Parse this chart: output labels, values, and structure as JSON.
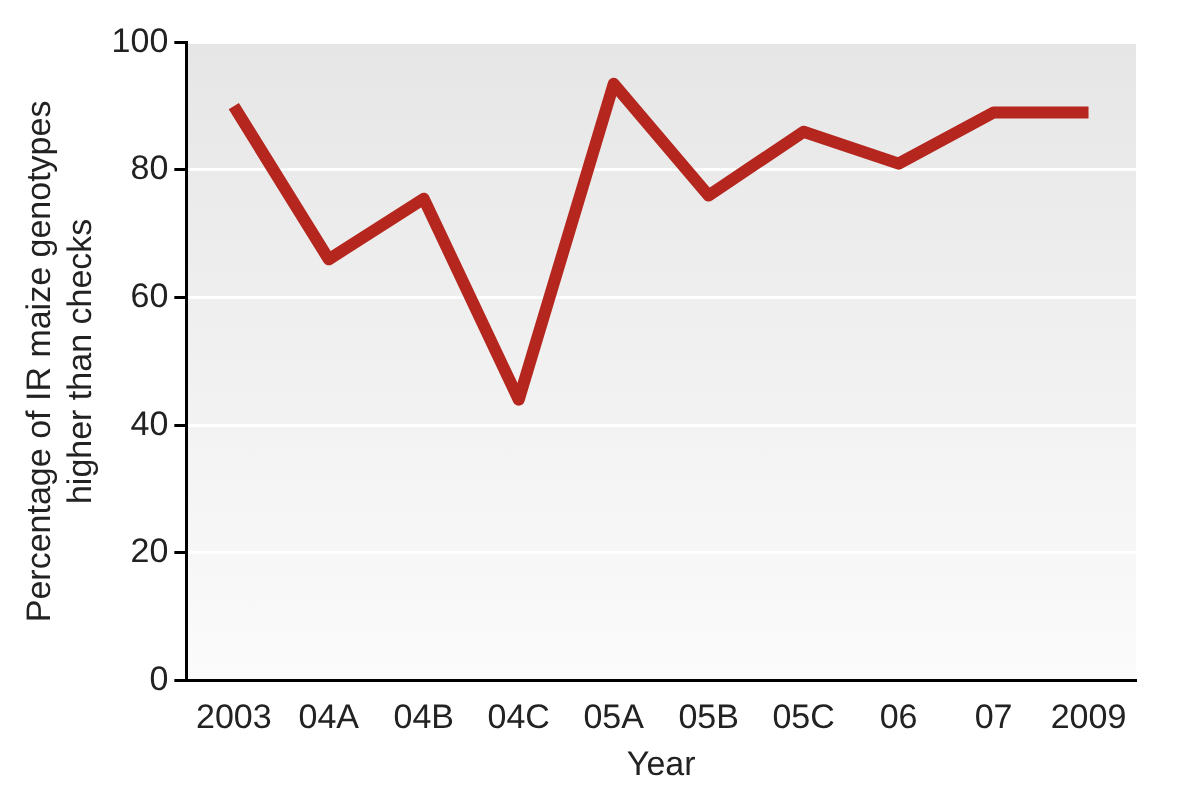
{
  "chart_data": {
    "type": "line",
    "xlabel": "Year",
    "ylabel": "Percentage of IR maize genotypes higher than checks",
    "categories": [
      "2003",
      "04A",
      "04B",
      "04C",
      "05A",
      "05B",
      "05C",
      "06",
      "07",
      "2009"
    ],
    "series": [
      {
        "color": "#b5271e",
        "values": [
          90,
          66,
          75.5,
          44,
          93.5,
          76,
          86,
          81,
          89,
          89
        ]
      }
    ],
    "ylim": [
      0,
      100
    ],
    "yticks": [
      0,
      20,
      40,
      60,
      80,
      100
    ],
    "grid": "y",
    "legend": false,
    "marker": "none",
    "line_style": "solid"
  }
}
